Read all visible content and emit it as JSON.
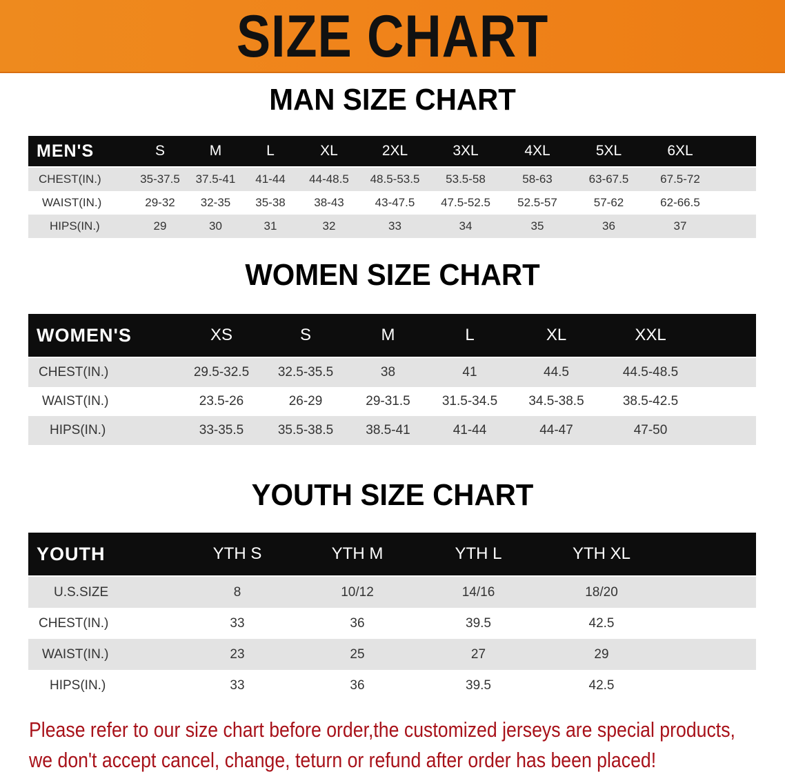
{
  "banner": {
    "title": "SIZE CHART",
    "color": "#ee8a1e"
  },
  "men": {
    "title": "MAN SIZE CHART",
    "header": [
      "MEN'S",
      "S",
      "M",
      "L",
      "XL",
      "2XL",
      "3XL",
      "4XL",
      "5XL",
      "6XL"
    ],
    "rows": [
      [
        "CHEST(IN.)",
        "35-37.5",
        "37.5-41",
        "41-44",
        "44-48.5",
        "48.5-53.5",
        "53.5-58",
        "58-63",
        "63-67.5",
        "67.5-72"
      ],
      [
        "WAIST(IN.)",
        "29-32",
        "32-35",
        "35-38",
        "38-43",
        "43-47.5",
        "47.5-52.5",
        "52.5-57",
        "57-62",
        "62-66.5"
      ],
      [
        "HIPS(IN.)",
        "29",
        "30",
        "31",
        "32",
        "33",
        "34",
        "35",
        "36",
        "37"
      ]
    ]
  },
  "women": {
    "title": "WOMEN SIZE CHART",
    "header": [
      "WOMEN'S",
      "XS",
      "S",
      "M",
      "L",
      "XL",
      "XXL"
    ],
    "rows": [
      [
        "CHEST(IN.)",
        "29.5-32.5",
        "32.5-35.5",
        "38",
        "41",
        "44.5",
        "44.5-48.5"
      ],
      [
        "WAIST(IN.)",
        "23.5-26",
        "26-29",
        "29-31.5",
        "31.5-34.5",
        "34.5-38.5",
        "38.5-42.5"
      ],
      [
        "HIPS(IN.)",
        "33-35.5",
        "35.5-38.5",
        "38.5-41",
        "41-44",
        "44-47",
        "47-50"
      ]
    ]
  },
  "youth": {
    "title": "YOUTH SIZE CHART",
    "header": [
      "YOUTH",
      "YTH S",
      "YTH M",
      "YTH L",
      "YTH XL"
    ],
    "rows": [
      [
        "U.S.SIZE",
        "8",
        "10/12",
        "14/16",
        "18/20"
      ],
      [
        "CHEST(IN.)",
        "33",
        "36",
        "39.5",
        "42.5"
      ],
      [
        "WAIST(IN.)",
        "23",
        "25",
        "27",
        "29"
      ],
      [
        "HIPS(IN.)",
        "33",
        "36",
        "39.5",
        "42.5"
      ]
    ]
  },
  "notice": {
    "line1": "Please refer to our size chart before order,the customized jerseys are special products,",
    "line2": "we don't accept cancel, change, teturn or refund after order has been placed!",
    "color": "#a8121a"
  }
}
